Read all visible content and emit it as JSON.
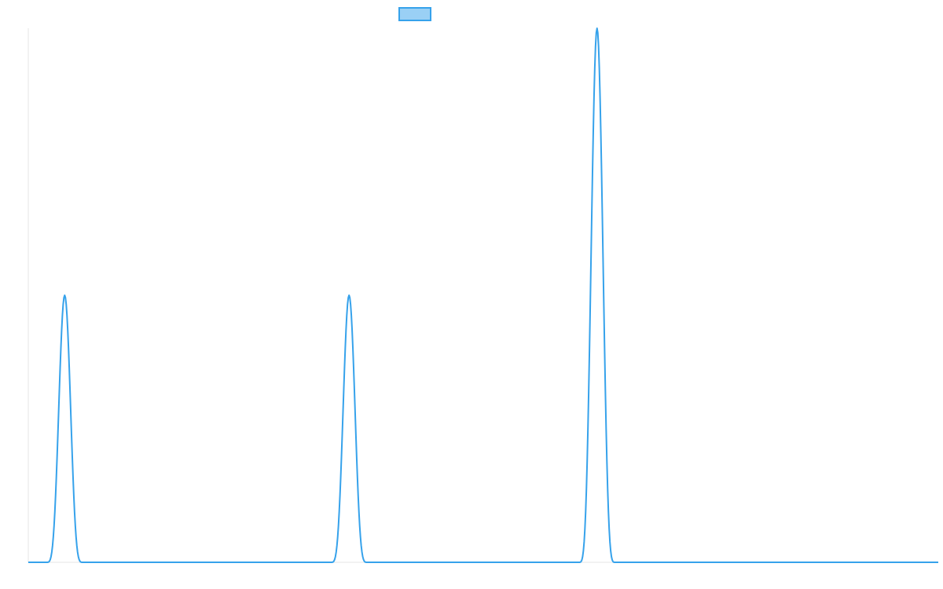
{
  "chart_data": {
    "type": "line",
    "title": "",
    "xlabel": "",
    "ylabel": "",
    "legend": "top-center",
    "grid": false,
    "xlim": [
      0,
      200
    ],
    "ylim": [
      0,
      2
    ],
    "series": [
      {
        "color": "#36A2EB",
        "fill": "#9AD0F5",
        "peaks": [
          {
            "center": 8,
            "height": 1,
            "halfwidth": 4
          },
          {
            "center": 70.5,
            "height": 1,
            "halfwidth": 4
          },
          {
            "center": 125,
            "height": 2,
            "halfwidth": 4
          }
        ]
      }
    ]
  }
}
